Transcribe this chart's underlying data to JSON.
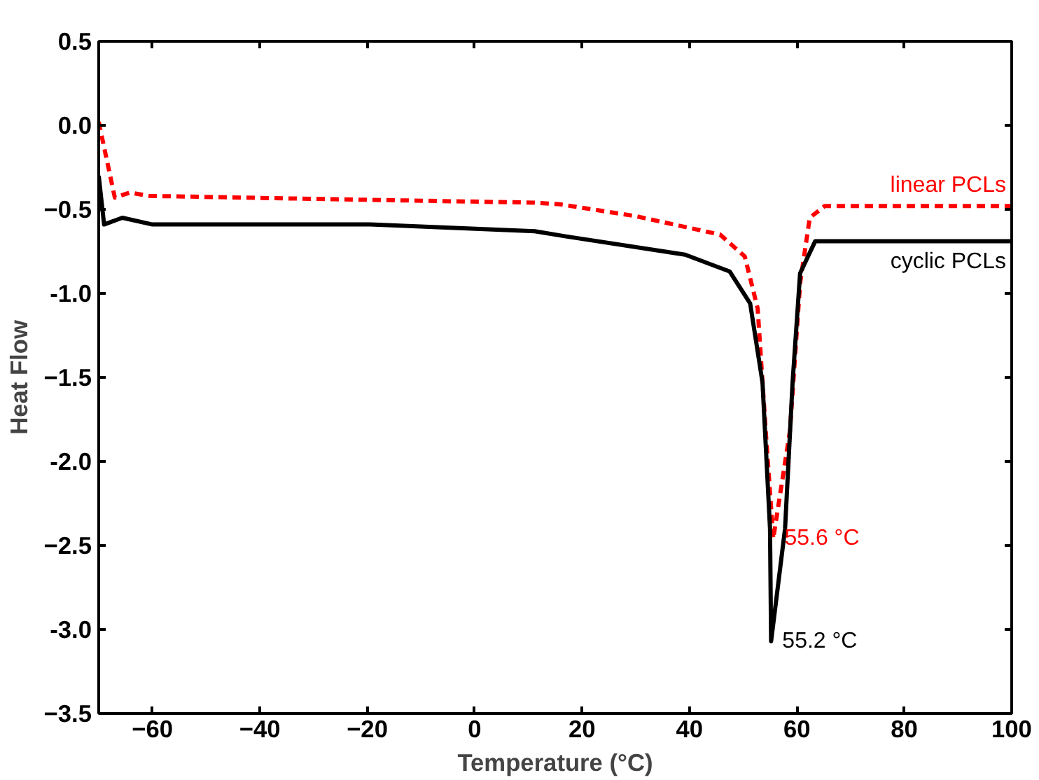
{
  "chart_data": {
    "type": "line",
    "xlabel": "Temperature (°C)",
    "ylabel": "Heat Flow",
    "xlim": [
      -70,
      100
    ],
    "xticks": [
      -60,
      -40,
      -20,
      0,
      20,
      40,
      60,
      80,
      100
    ],
    "ylim": [
      -3.5,
      0.5
    ],
    "yticks": [
      0.5,
      {
        "value": 0,
        "label": "0.0"
      },
      -0.5,
      {
        "value": -1,
        "label": "-1.0"
      },
      -1.5,
      {
        "value": -2,
        "label": "-2.0"
      },
      -2.5,
      {
        "value": -3,
        "label": "-3.0"
      },
      -3.5
    ],
    "grid": false,
    "legend": false,
    "marker": "none",
    "series": [
      {
        "name": "linear PCLs",
        "color": "#ff0000",
        "line_style": "dashed",
        "x": [
          -70,
          -67,
          -64.2,
          -60.6,
          -26,
          11.2,
          15.9,
          29.9,
          45.7,
          50.3,
          52.7,
          54.2,
          55.6,
          58.7,
          60.6,
          62.4,
          65.2,
          100
        ],
        "values": [
          0.02,
          -0.43,
          -0.4,
          -0.42,
          -0.44,
          -0.46,
          -0.47,
          -0.54,
          -0.65,
          -0.78,
          -1.09,
          -1.82,
          -2.46,
          -1.82,
          -0.94,
          -0.55,
          -0.48,
          -0.48
        ]
      },
      {
        "name": "cyclic PCLs",
        "color": "#000000",
        "line_style": "solid",
        "x": [
          -70,
          -69,
          -65.6,
          -60,
          -19.5,
          11.2,
          16.8,
          39.2,
          47.5,
          51.3,
          53.6,
          55.0,
          55.2,
          57.8,
          59.2,
          60.6,
          63.4,
          100
        ],
        "values": [
          -0.3,
          -0.59,
          -0.55,
          -0.59,
          -0.59,
          -0.63,
          -0.66,
          -0.77,
          -0.87,
          -1.06,
          -1.53,
          -2.4,
          -3.07,
          -2.4,
          -1.53,
          -0.88,
          -0.69,
          -0.69
        ]
      }
    ],
    "annotations": [
      {
        "text": "55.6 °C",
        "x": 55.6,
        "y": -2.46
      },
      {
        "text": "55.2 °C",
        "x": 55.2,
        "y": -3.07
      }
    ]
  }
}
